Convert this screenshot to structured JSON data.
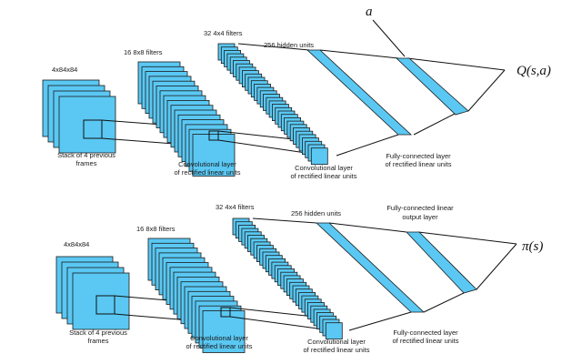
{
  "top": {
    "input_size": "4x84x84",
    "conv1_filters": "16 8x8 filters",
    "conv2_filters": "32 4x4 filters",
    "hidden_units": "256 hidden units",
    "input_caption": [
      "Stack of 4 previous",
      "frames"
    ],
    "conv1_caption": [
      "Convolutional layer",
      "of rectified linear units"
    ],
    "conv2_caption": [
      "Convolutional layer",
      "of rectified linear units"
    ],
    "fc_caption": [
      "Fully-connected layer",
      "of rectified linear units"
    ],
    "action_label": "a",
    "output_label": "Q(s,a)"
  },
  "bottom": {
    "input_size": "4x84x84",
    "conv1_filters": "16 8x8 filters",
    "conv2_filters": "32 4x4 filters",
    "hidden_units": "256 hidden units",
    "output_layer_caption": [
      "Fully-connected linear",
      "output layer"
    ],
    "input_caption": [
      "Stack of 4 previous",
      "frames"
    ],
    "conv1_caption": [
      "Convolutional layer",
      "of rectified linear units"
    ],
    "conv2_caption": [
      "Convolutional layer",
      "of rectified linear units"
    ],
    "fc_caption": [
      "Fully-connected layer",
      "of rectified linear units"
    ],
    "output_label": "π(s)"
  },
  "colors": {
    "layer_fill": "#5ac8f3",
    "stroke": "#1b1b1b"
  }
}
